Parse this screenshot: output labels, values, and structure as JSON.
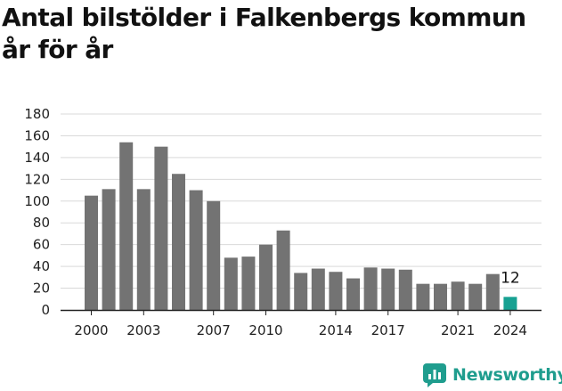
{
  "title": {
    "line1": "Antal bilstölder i Falkenbergs kommun",
    "line2": "år för år"
  },
  "brand": {
    "name": "Newsworthy",
    "icon": "newsworthy-logo-icon",
    "color": "#1f9d8e"
  },
  "colors": {
    "bar": "#737373",
    "highlight": "#17a192",
    "grid": "#d9d9d9",
    "axis": "#222222"
  },
  "chart_data": {
    "type": "bar",
    "x": [
      2000,
      2001,
      2002,
      2003,
      2004,
      2005,
      2006,
      2007,
      2008,
      2009,
      2010,
      2011,
      2012,
      2013,
      2014,
      2015,
      2016,
      2017,
      2018,
      2019,
      2020,
      2021,
      2022,
      2023,
      2024
    ],
    "values": [
      105,
      111,
      154,
      111,
      150,
      125,
      110,
      100,
      48,
      49,
      60,
      73,
      34,
      38,
      35,
      29,
      39,
      38,
      37,
      24,
      24,
      26,
      24,
      33,
      12
    ],
    "highlight_index": 24,
    "data_labels": [
      {
        "index": 24,
        "text": "12"
      }
    ],
    "x_ticks": [
      2000,
      2003,
      2007,
      2010,
      2014,
      2017,
      2021,
      2024
    ],
    "y_ticks": [
      0,
      20,
      40,
      60,
      80,
      100,
      120,
      140,
      160,
      180
    ],
    "ylim": [
      0,
      180
    ],
    "grid": true,
    "legend": "none"
  }
}
